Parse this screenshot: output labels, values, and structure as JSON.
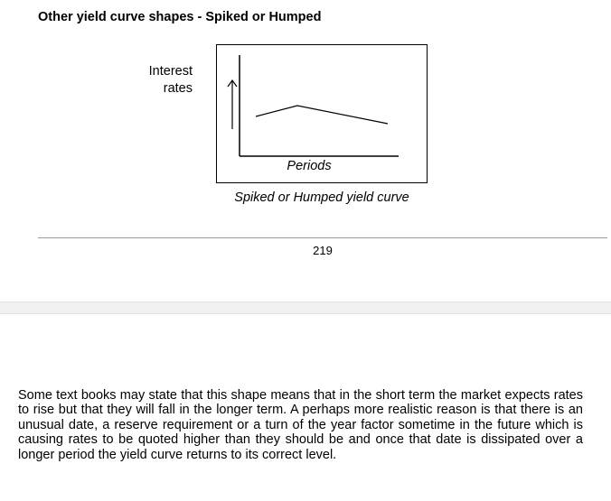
{
  "page_upper": {
    "heading": "Other yield curve shapes - Spiked or Humped",
    "figure": {
      "y_label": "Interest rates",
      "x_label": "Periods",
      "caption": "Spiked or Humped yield curve"
    },
    "page_number": "219"
  },
  "page_lower": {
    "body_text": "Some text books may state that this shape means that in the short term the market expects rates to rise but that they will fall in the longer term. A perhaps more realistic reason is that there is an unusual date, a reserve requirement or a turn of the year factor sometime in the future which is causing rates to be quoted higher than they should be and once that date is dissipated over a longer period the yield curve returns to its correct level."
  }
}
